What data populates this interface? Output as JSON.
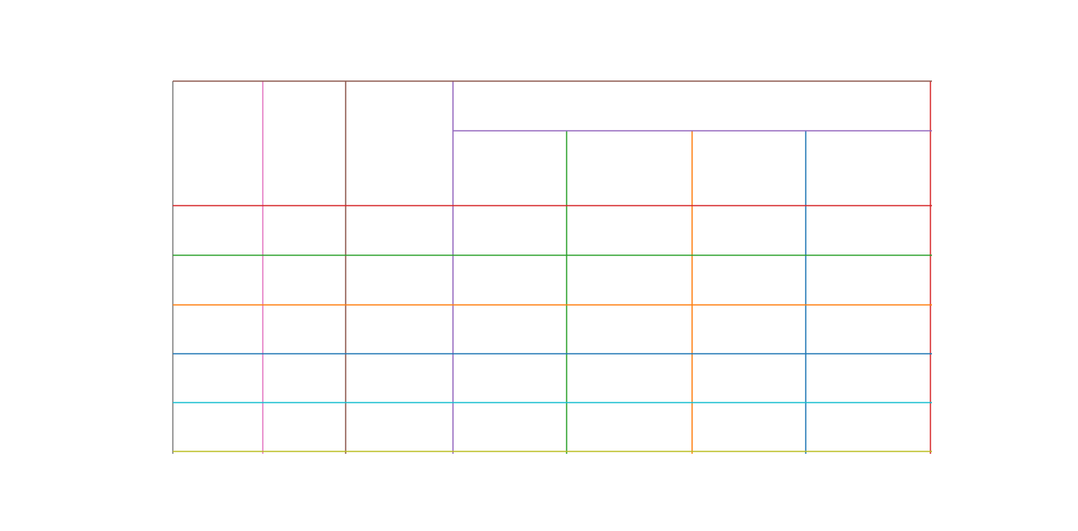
{
  "grid": {
    "background": "#ffffff",
    "line_colors": {
      "top": "#8c564b",
      "header_split": "#9467bd",
      "row_1": "#d62728",
      "row_2": "#2ca02c",
      "row_3": "#ff7f0e",
      "row_4": "#1f77b4",
      "row_5": "#17becf",
      "bottom": "#bcbd22",
      "col_0": "#7f7f7f",
      "col_1": "#e377c2",
      "col_2": "#8c564b",
      "col_3": "#9467bd",
      "col_4": "#2ca02c",
      "col_5": "#ff7f0e",
      "col_6": "#1f77b4",
      "col_7": "#d62728"
    }
  }
}
